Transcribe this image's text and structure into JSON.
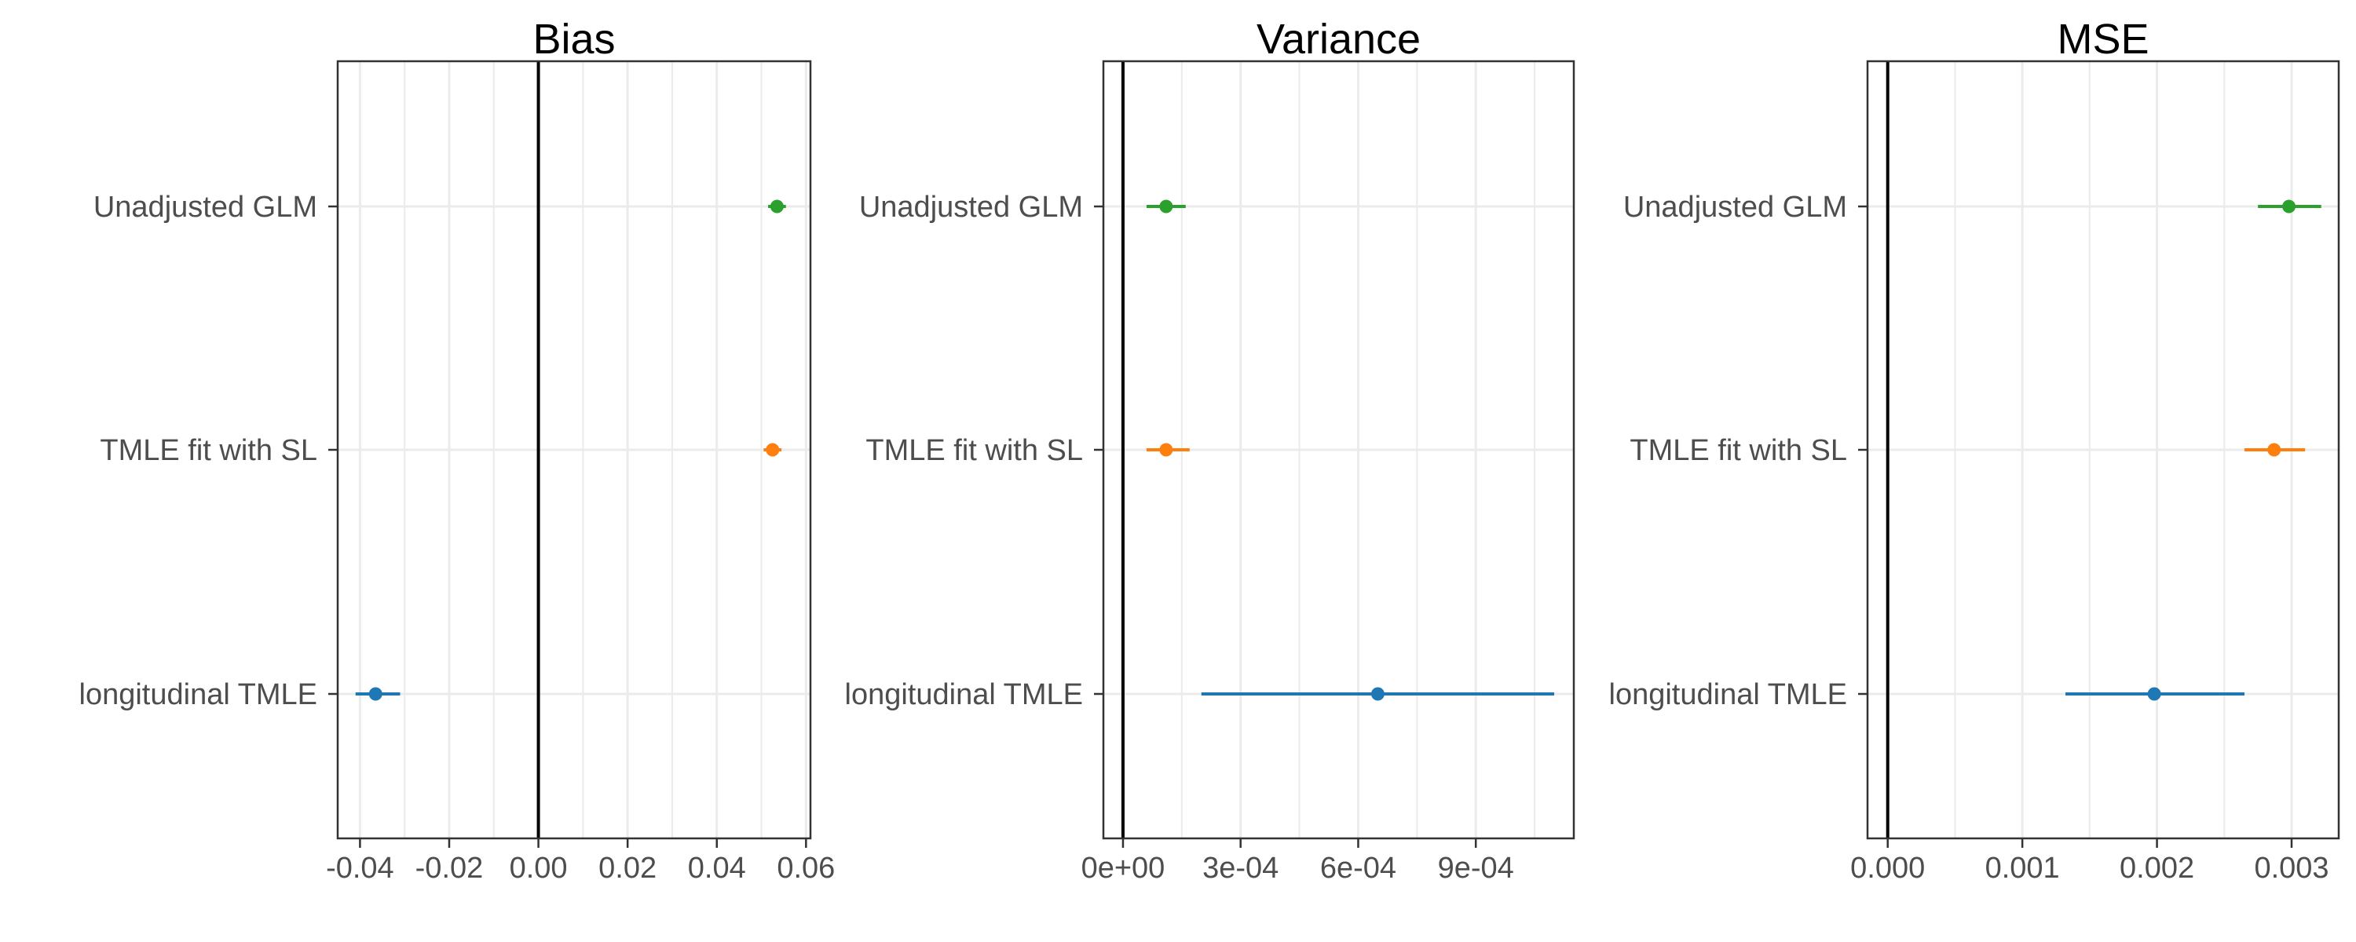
{
  "chart_data": [
    {
      "type": "scatter",
      "title": "Bias",
      "xlabel": "",
      "ylabel": "",
      "categories": [
        "Unadjusted GLM",
        "TMLE fit with SL",
        "longitudinal TMLE"
      ],
      "xlim": [
        -0.045,
        0.061
      ],
      "xticks": [
        -0.04,
        -0.02,
        0.0,
        0.02,
        0.04,
        0.06
      ],
      "xtick_labels": [
        "-0.04",
        "-0.02",
        "0.00",
        "0.02",
        "0.04",
        "0.06"
      ],
      "reference_line": 0,
      "grid": true,
      "points": [
        {
          "category": "Unadjusted GLM",
          "value": 0.0535,
          "lower": 0.0515,
          "upper": 0.0555
        },
        {
          "category": "TMLE fit with SL",
          "value": 0.0525,
          "lower": 0.0505,
          "upper": 0.0545
        },
        {
          "category": "longitudinal TMLE",
          "value": -0.0365,
          "lower": -0.041,
          "upper": -0.031
        }
      ]
    },
    {
      "type": "scatter",
      "title": "Variance",
      "xlabel": "",
      "ylabel": "",
      "categories": [
        "Unadjusted GLM",
        "TMLE fit with SL",
        "longitudinal TMLE"
      ],
      "xlim": [
        -5e-05,
        0.00115
      ],
      "xticks": [
        0,
        0.0003,
        0.0006,
        0.0009
      ],
      "xtick_labels": [
        "0e+00",
        "3e-04",
        "6e-04",
        "9e-04"
      ],
      "reference_line": 0,
      "grid": true,
      "points": [
        {
          "category": "Unadjusted GLM",
          "value": 0.00011,
          "lower": 6e-05,
          "upper": 0.00016
        },
        {
          "category": "TMLE fit with SL",
          "value": 0.00011,
          "lower": 6e-05,
          "upper": 0.00017
        },
        {
          "category": "longitudinal TMLE",
          "value": 0.00065,
          "lower": 0.0002,
          "upper": 0.0011
        }
      ]
    },
    {
      "type": "scatter",
      "title": "MSE",
      "xlabel": "",
      "ylabel": "",
      "categories": [
        "Unadjusted GLM",
        "TMLE fit with SL",
        "longitudinal TMLE"
      ],
      "xlim": [
        -0.00015,
        0.00335
      ],
      "xticks": [
        0,
        0.001,
        0.002,
        0.003
      ],
      "xtick_labels": [
        "0.000",
        "0.001",
        "0.002",
        "0.003"
      ],
      "reference_line": 0,
      "grid": true,
      "points": [
        {
          "category": "Unadjusted GLM",
          "value": 0.00298,
          "lower": 0.00275,
          "upper": 0.00322
        },
        {
          "category": "TMLE fit with SL",
          "value": 0.00287,
          "lower": 0.00265,
          "upper": 0.0031
        },
        {
          "category": "longitudinal TMLE",
          "value": 0.00198,
          "lower": 0.00132,
          "upper": 0.00265
        }
      ]
    }
  ],
  "colors": {
    "Unadjusted GLM": "#2ca02c",
    "TMLE fit with SL": "#ff7f0e",
    "longitudinal TMLE": "#1f77b4",
    "grid": "#ebebeb",
    "axis": "#333333",
    "reference": "#000000"
  }
}
